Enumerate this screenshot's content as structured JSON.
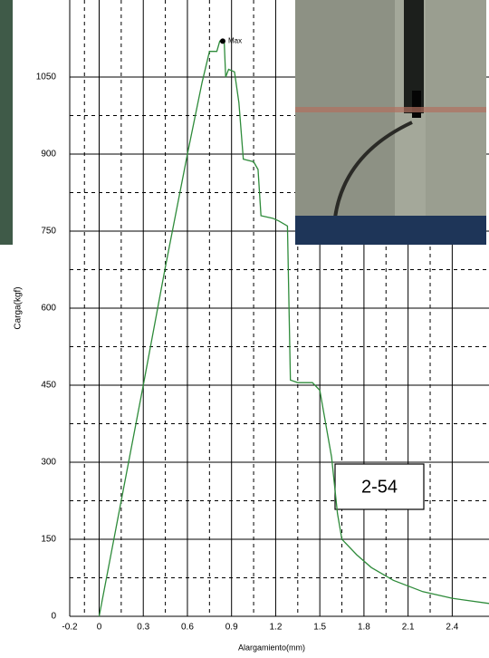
{
  "chart_data": {
    "type": "line",
    "x_label": "Alargamiento(mm)",
    "y_label": "Carga(kgf)",
    "x": [
      0,
      0.15,
      0.3,
      0.45,
      0.6,
      0.7,
      0.75,
      0.8,
      0.82,
      0.85,
      0.86,
      0.88,
      0.92,
      0.95,
      0.98,
      1.05,
      1.08,
      1.1,
      1.18,
      1.22,
      1.28,
      1.3,
      1.35,
      1.45,
      1.5,
      1.58,
      1.62,
      1.65,
      1.75,
      1.85,
      2.0,
      2.2,
      2.4,
      2.65
    ],
    "series": [
      {
        "name": "Carga",
        "color": "#2e8b3a",
        "values": [
          0,
          225,
          450,
          680,
          900,
          1040,
          1100,
          1100,
          1120,
          1120,
          1050,
          1065,
          1060,
          1000,
          890,
          885,
          870,
          780,
          775,
          770,
          760,
          460,
          455,
          455,
          440,
          310,
          200,
          150,
          120,
          95,
          70,
          48,
          35,
          25
        ]
      }
    ],
    "xlim": [
      -0.2,
      2.65
    ],
    "ylim": [
      0,
      1200
    ],
    "xticks": [
      -0.2,
      0,
      0.3,
      0.6,
      0.9,
      1.2,
      1.5,
      1.8,
      2.1,
      2.4
    ],
    "yticks": [
      0,
      150,
      300,
      450,
      600,
      750,
      900,
      1050
    ],
    "grid": true,
    "annotations": [
      {
        "text": "Max",
        "x": 0.84,
        "y": 1120
      },
      {
        "text": "2-54"
      }
    ]
  }
}
